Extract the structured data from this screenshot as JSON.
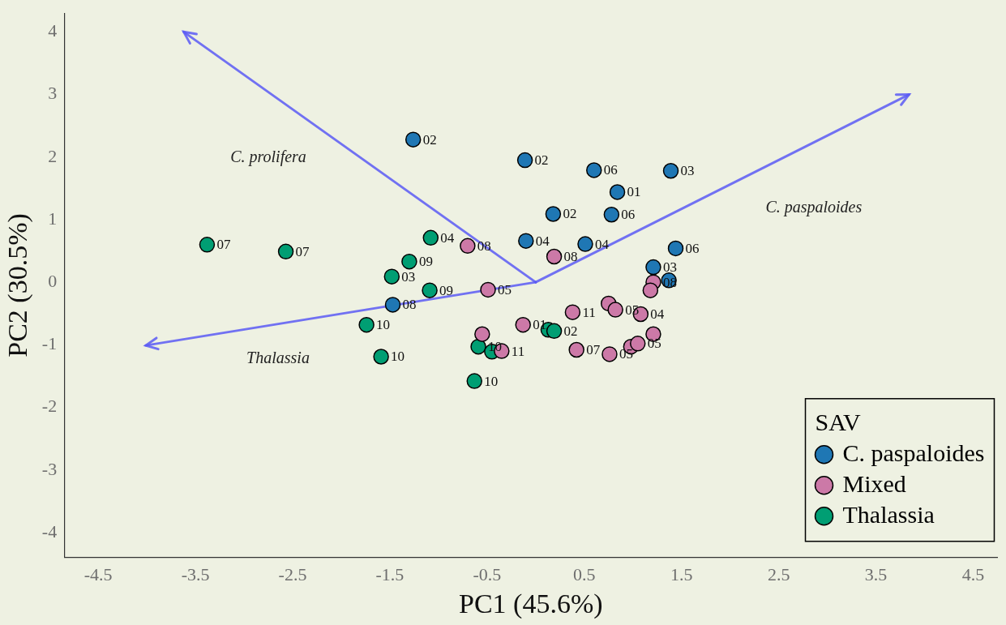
{
  "chart_data": {
    "type": "scatter",
    "x_label": "PC1 (45.6%)",
    "y_label": "PC2 (30.5%)",
    "xlim": [
      -4.85,
      4.75
    ],
    "ylim": [
      -4.4,
      4.3
    ],
    "xticks": [
      -4.5,
      -3.5,
      -2.5,
      -1.5,
      -0.5,
      0.5,
      1.5,
      2.5,
      3.5,
      4.5
    ],
    "yticks": [
      -4,
      -3,
      -2,
      -1,
      0,
      1,
      2,
      3,
      4
    ],
    "grid": false,
    "legend": "lower right",
    "legend_title": "SAV",
    "marker": "circle",
    "series": [
      {
        "name": "C. paspaloides",
        "color": "#1f77b4",
        "points": [
          {
            "x": -1.26,
            "y": 2.28,
            "label": "02"
          },
          {
            "x": -0.11,
            "y": 1.95,
            "label": "02"
          },
          {
            "x": 0.6,
            "y": 1.79,
            "label": "06"
          },
          {
            "x": 1.39,
            "y": 1.78,
            "label": "03"
          },
          {
            "x": 0.84,
            "y": 1.44,
            "label": "01"
          },
          {
            "x": 0.18,
            "y": 1.09,
            "label": "02"
          },
          {
            "x": 0.78,
            "y": 1.08,
            "label": "06"
          },
          {
            "x": -0.1,
            "y": 0.66,
            "label": "04"
          },
          {
            "x": 0.51,
            "y": 0.61,
            "label": "04"
          },
          {
            "x": 1.44,
            "y": 0.54,
            "label": "06"
          },
          {
            "x": 1.21,
            "y": 0.24,
            "label": "03"
          },
          {
            "x": 1.37,
            "y": 0.03,
            "label": null
          },
          {
            "x": -1.47,
            "y": -0.36,
            "label": "08"
          }
        ]
      },
      {
        "name": "Mixed",
        "color": "#cc79a7",
        "points": [
          {
            "x": -0.7,
            "y": 0.58,
            "label": "08"
          },
          {
            "x": 0.19,
            "y": 0.41,
            "label": "08"
          },
          {
            "x": 1.21,
            "y": 0.0,
            "label": "08"
          },
          {
            "x": 1.18,
            "y": -0.13,
            "label": null
          },
          {
            "x": -0.49,
            "y": -0.12,
            "label": "05"
          },
          {
            "x": 0.75,
            "y": -0.34,
            "label": null
          },
          {
            "x": 0.82,
            "y": -0.44,
            "label": "05"
          },
          {
            "x": 1.08,
            "y": -0.51,
            "label": "04"
          },
          {
            "x": 0.38,
            "y": -0.48,
            "label": "11"
          },
          {
            "x": -0.13,
            "y": -0.68,
            "label": "01"
          },
          {
            "x": -0.55,
            "y": -0.83,
            "label": null
          },
          {
            "x": -0.35,
            "y": -1.1,
            "label": "11"
          },
          {
            "x": 0.42,
            "y": -1.08,
            "label": "07"
          },
          {
            "x": 0.76,
            "y": -1.15,
            "label": "05"
          },
          {
            "x": 0.98,
            "y": -1.03,
            "label": null
          },
          {
            "x": 1.05,
            "y": -0.98,
            "label": "05"
          },
          {
            "x": 1.21,
            "y": -0.83,
            "label": null
          }
        ]
      },
      {
        "name": "Thalassia",
        "color": "#009e73",
        "points": [
          {
            "x": -3.38,
            "y": 0.6,
            "label": "07"
          },
          {
            "x": -2.57,
            "y": 0.49,
            "label": "07"
          },
          {
            "x": -1.08,
            "y": 0.71,
            "label": "04"
          },
          {
            "x": -1.3,
            "y": 0.33,
            "label": "09"
          },
          {
            "x": -1.48,
            "y": 0.09,
            "label": "03"
          },
          {
            "x": -1.09,
            "y": -0.13,
            "label": "09"
          },
          {
            "x": -1.74,
            "y": -0.68,
            "label": "10"
          },
          {
            "x": -1.59,
            "y": -1.19,
            "label": "10"
          },
          {
            "x": -0.63,
            "y": -1.58,
            "label": "10"
          },
          {
            "x": -0.59,
            "y": -1.03,
            "label": "10"
          },
          {
            "x": -0.45,
            "y": -1.11,
            "label": null
          },
          {
            "x": 0.13,
            "y": -0.76,
            "label": null
          },
          {
            "x": 0.19,
            "y": -0.78,
            "label": "02"
          }
        ]
      }
    ],
    "loadings": {
      "color": "#5a5af5",
      "vectors": [
        {
          "name": "C. prolifera",
          "x": -3.62,
          "y": 4.0,
          "label_x": -2.75,
          "label_y": 1.99
        },
        {
          "name": "C. paspaloides",
          "x": 3.84,
          "y": 3.0,
          "label_x": 2.86,
          "label_y": 1.19
        },
        {
          "name": "Thalassia",
          "x": -4.01,
          "y": -1.01,
          "label_x": -2.65,
          "label_y": -1.23
        }
      ]
    }
  }
}
